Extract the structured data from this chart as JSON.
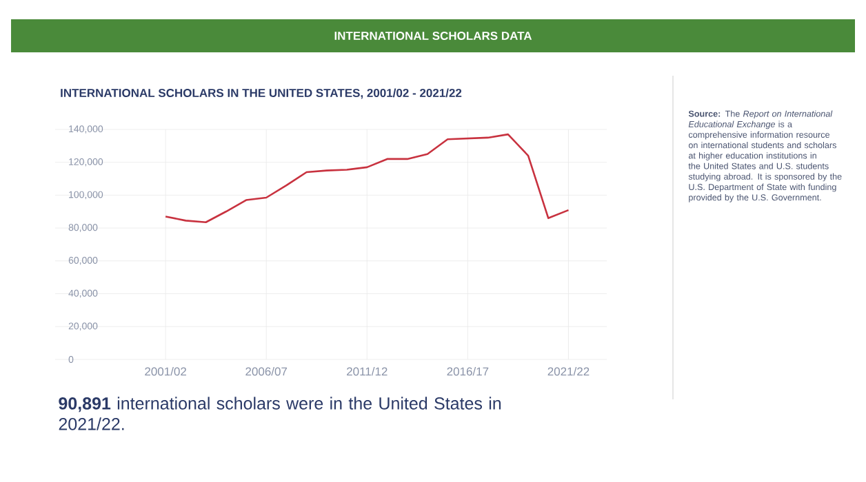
{
  "chart_data": {
    "type": "line",
    "title": "INTERNATIONAL SCHOLARS DATA",
    "subtitle": "INTERNATIONAL SCHOLARS IN THE UNITED STATES, 2001/02 - 2021/22",
    "categories": [
      "2001/02",
      null,
      null,
      null,
      null,
      "2006/07",
      null,
      null,
      null,
      null,
      "2011/12",
      null,
      null,
      null,
      null,
      "2016/17",
      null,
      null,
      null,
      null,
      "2021/22"
    ],
    "series": [
      {
        "color": "#c8323f",
        "values": [
          87000,
          84500,
          83500,
          90000,
          97000,
          98500,
          106000,
          114000,
          115000,
          115500,
          117000,
          122000,
          122000,
          125000,
          134000,
          134500,
          135000,
          137000,
          124000,
          86000,
          90891
        ]
      }
    ],
    "ylim": [
      0,
      140000
    ],
    "yticks": [
      {
        "value": 0,
        "label": "0"
      },
      {
        "value": 20000,
        "label": "20,000"
      },
      {
        "value": 40000,
        "label": "40,000"
      },
      {
        "value": 60000,
        "label": "60,000"
      },
      {
        "value": 80000,
        "label": "80,000"
      },
      {
        "value": 100000,
        "label": "100,000"
      },
      {
        "value": 120000,
        "label": "120,000"
      },
      {
        "value": 140000,
        "label": "140,000"
      }
    ],
    "grid": true,
    "annotations": [
      "**Source:** The *Report on International Educational Exchange* is a comprehensive information resource on international students and scholars at higher education institutions in the United States and U.S. students studying abroad. It is sponsored by the U.S. Department of State with funding provided by the U.S. Government.",
      "**90,891** international scholars were in the United States in 2021/22."
    ]
  }
}
